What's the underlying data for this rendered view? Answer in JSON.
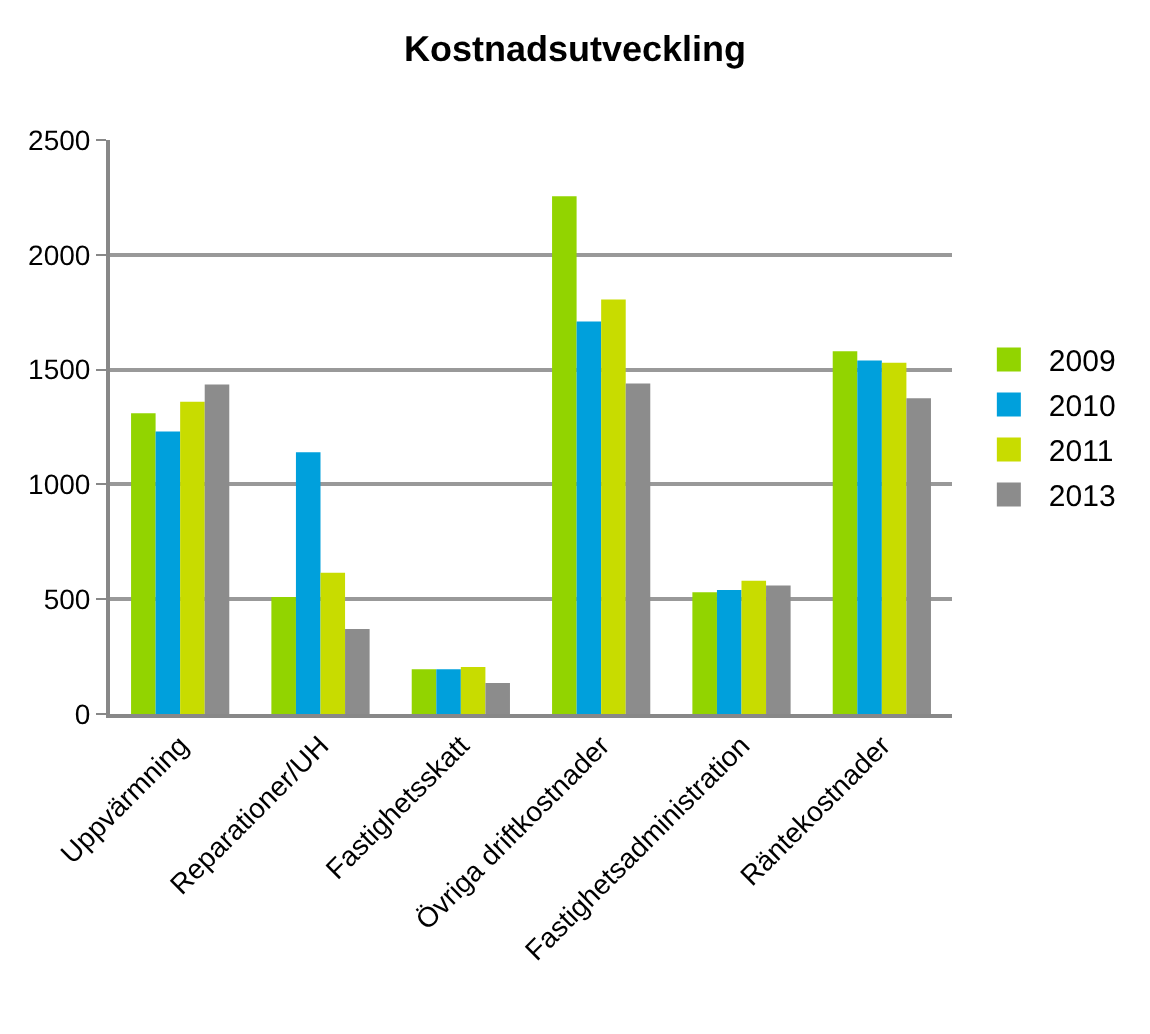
{
  "chart_data": {
    "type": "bar",
    "title": "Kostnadsutveckling",
    "categories": [
      "Uppvärmning",
      "Reparationer/UH",
      "Fastighetsskatt",
      "Övriga driftkostnader",
      "Fastighetsadministration",
      "Räntekostnader"
    ],
    "series": [
      {
        "name": "2009",
        "color": "#92d400",
        "values": [
          1310,
          510,
          195,
          2255,
          530,
          1580
        ]
      },
      {
        "name": "2010",
        "color": "#00a0dc",
        "values": [
          1230,
          1140,
          195,
          1710,
          540,
          1540
        ]
      },
      {
        "name": "2011",
        "color": "#c8dc00",
        "values": [
          1360,
          615,
          205,
          1805,
          580,
          1530
        ]
      },
      {
        "name": "2013",
        "color": "#8c8c8c",
        "values": [
          1435,
          370,
          135,
          1440,
          560,
          1375
        ]
      }
    ],
    "ylim": [
      0,
      2500
    ],
    "yticks": [
      0,
      500,
      1000,
      1500,
      2000,
      2500
    ],
    "grid": "y",
    "legend": "right"
  }
}
